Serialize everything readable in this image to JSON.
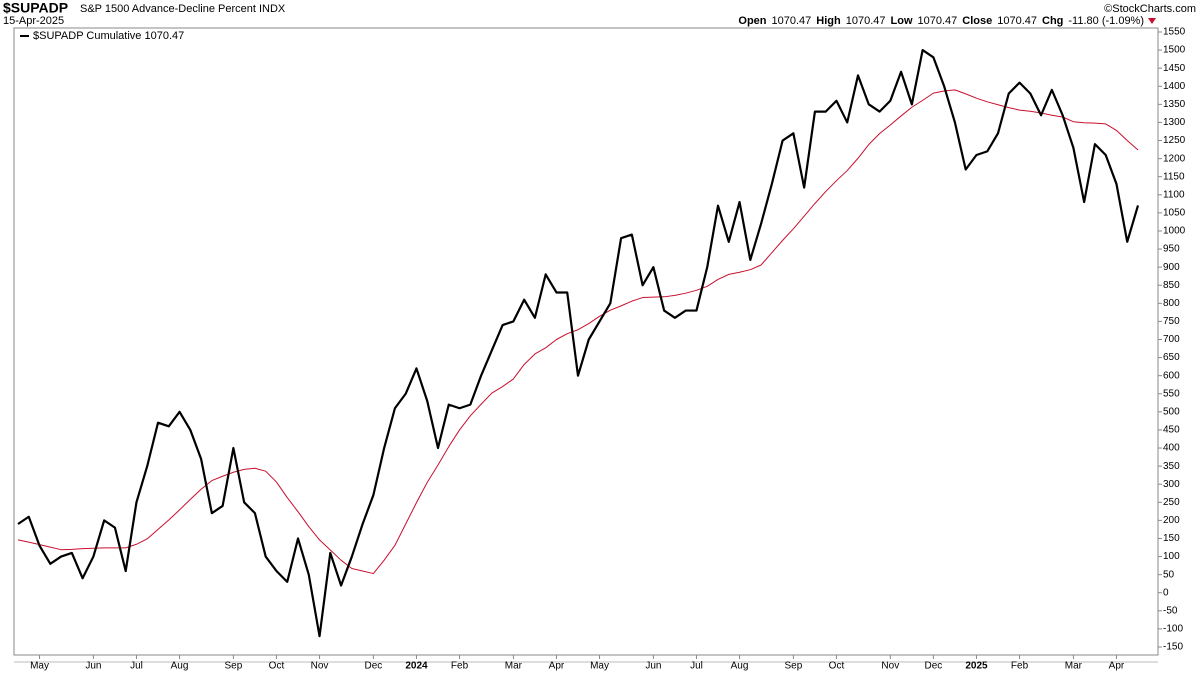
{
  "chart_data": {
    "type": "line",
    "title": "$SUPADP",
    "subtitle": "S&P 1500 Advance-Decline Percent INDX",
    "date": "15-Apr-2025",
    "credit": "©StockCharts.com",
    "quote": [
      {
        "label": "Open",
        "value": "1070.47"
      },
      {
        "label": "High",
        "value": "1070.47"
      },
      {
        "label": "Low",
        "value": "1070.47"
      },
      {
        "label": "Close",
        "value": "1070.47"
      },
      {
        "label": "Chg",
        "value": "-11.80 (-1.09%)"
      }
    ],
    "categories": [
      null,
      null,
      "May",
      null,
      null,
      null,
      null,
      "Jun",
      null,
      null,
      null,
      "Jul",
      null,
      null,
      null,
      "Aug",
      null,
      null,
      null,
      null,
      "Sep",
      null,
      null,
      null,
      "Oct",
      null,
      null,
      null,
      "Nov",
      null,
      null,
      null,
      null,
      "Dec",
      null,
      null,
      null,
      "2024",
      null,
      null,
      null,
      "Feb",
      null,
      null,
      null,
      null,
      "Mar",
      null,
      null,
      null,
      "Apr",
      null,
      null,
      null,
      "May",
      null,
      null,
      null,
      null,
      "Jun",
      null,
      null,
      null,
      "Jul",
      null,
      null,
      null,
      "Aug",
      null,
      null,
      null,
      null,
      "Sep",
      null,
      null,
      null,
      "Oct",
      null,
      null,
      null,
      null,
      "Nov",
      null,
      null,
      null,
      "Dec",
      null,
      null,
      null,
      "2025",
      null,
      null,
      null,
      "Feb",
      null,
      null,
      null,
      null,
      "Mar",
      null,
      null,
      null,
      "Apr",
      null,
      null
    ],
    "series": [
      {
        "name": "$SUPADP Cumulative 1070.47",
        "color": "#000000",
        "width": 2.2,
        "values": [
          190,
          210,
          130,
          80,
          100,
          110,
          40,
          100,
          200,
          180,
          60,
          250,
          350,
          470,
          460,
          500,
          450,
          370,
          220,
          240,
          400,
          250,
          220,
          100,
          60,
          30,
          150,
          50,
          -120,
          110,
          20,
          100,
          190,
          270,
          400,
          510,
          550,
          620,
          530,
          400,
          520,
          510,
          520,
          600,
          670,
          740,
          750,
          810,
          760,
          880,
          830,
          830,
          600,
          700,
          750,
          800,
          980,
          990,
          850,
          900,
          780,
          760,
          780,
          780,
          900,
          1070,
          970,
          1080,
          920,
          1020,
          1130,
          1250,
          1270,
          1120,
          1330,
          1330,
          1360,
          1300,
          1430,
          1350,
          1330,
          1360,
          1440,
          1350,
          1500,
          1480,
          1400,
          1300,
          1170,
          1210,
          1220,
          1270,
          1380,
          1410,
          1380,
          1320,
          1390,
          1320,
          1230,
          1080,
          1240,
          1210,
          1130,
          970,
          1070.47
        ]
      },
      {
        "color": "#c8102e",
        "width": 1,
        "values": [
          146,
          140,
          133,
          126,
          119,
          120,
          122,
          123,
          124,
          124,
          124,
          134,
          149,
          175,
          201,
          229,
          258,
          286,
          310,
          322,
          333,
          341,
          344,
          336,
          306,
          263,
          224,
          183,
          146,
          118,
          90,
          67,
          60,
          53,
          90,
          131,
          190,
          249,
          305,
          353,
          404,
          450,
          489,
          521,
          552,
          570,
          591,
          631,
          660,
          677,
          700,
          716,
          727,
          744,
          764,
          781,
          793,
          806,
          816,
          817,
          818,
          822,
          828,
          836,
          847,
          866,
          880,
          886,
          893,
          906,
          940,
          974,
          1006,
          1041,
          1076,
          1109,
          1139,
          1167,
          1201,
          1239,
          1269,
          1293,
          1318,
          1342,
          1361,
          1381,
          1387,
          1390,
          1379,
          1367,
          1357,
          1349,
          1341,
          1334,
          1331,
          1326,
          1320,
          1315,
          1302,
          1299,
          1298,
          1296,
          1278,
          1250,
          1224
        ]
      }
    ],
    "ylim": [
      -150,
      1550
    ],
    "yticks": [
      -150,
      -100,
      -50,
      0,
      50,
      100,
      150,
      200,
      250,
      300,
      350,
      400,
      450,
      500,
      550,
      600,
      650,
      700,
      750,
      800,
      850,
      900,
      950,
      1000,
      1050,
      1100,
      1150,
      1200,
      1250,
      1300,
      1350,
      1400,
      1450,
      1500,
      1550
    ],
    "legend": "top-left"
  }
}
